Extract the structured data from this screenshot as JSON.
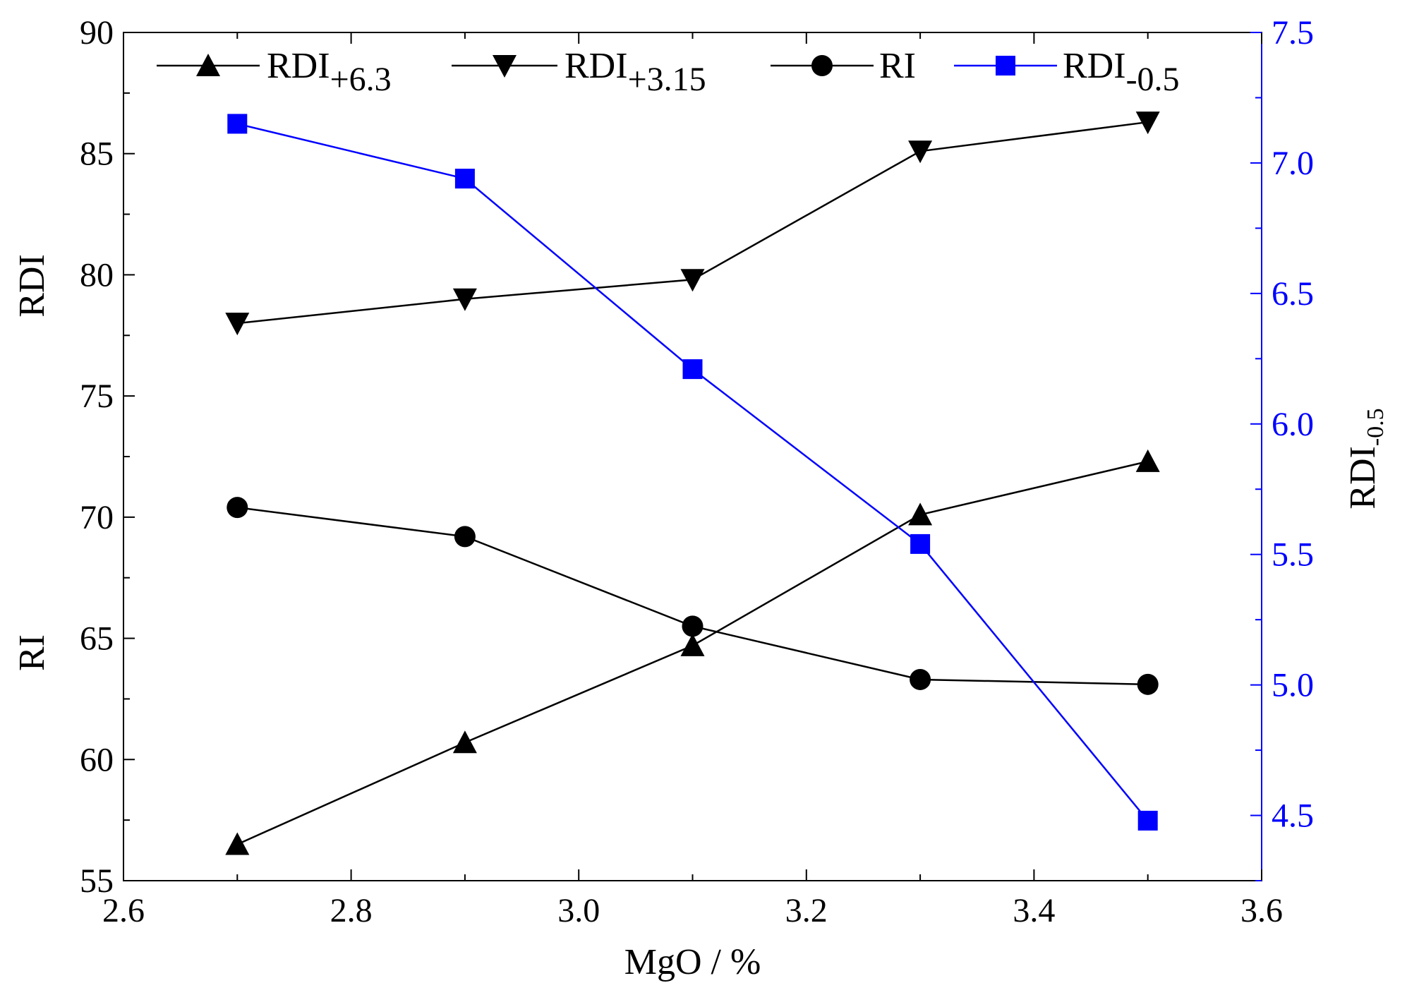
{
  "chart_data": {
    "type": "line",
    "xlabel": "MgO / %",
    "ylabel_left_top": "RDI",
    "ylabel_left_bottom": "RI",
    "ylabel_right": {
      "base": "RDI",
      "sub": "-0.5"
    },
    "xlim": [
      2.6,
      3.6
    ],
    "ylim_left": [
      55,
      90
    ],
    "ylim_right": [
      4.25,
      7.5
    ],
    "x_ticks": [
      "2.6",
      "2.8",
      "3.0",
      "3.2",
      "3.4",
      "3.6"
    ],
    "y_left_ticks": [
      "55",
      "60",
      "65",
      "70",
      "75",
      "80",
      "85",
      "90"
    ],
    "y_right_ticks": [
      "4.5",
      "5.0",
      "5.5",
      "6.0",
      "6.5",
      "7.0",
      "7.5"
    ],
    "x": [
      2.7,
      2.9,
      3.1,
      3.3,
      3.5
    ],
    "series": [
      {
        "name": "RDI+6.3",
        "label_base": "RDI",
        "label_sub": "+6.3",
        "axis": "left",
        "marker": "triangle-up",
        "color": "#000000",
        "values": [
          56.5,
          60.7,
          64.7,
          70.1,
          72.3
        ]
      },
      {
        "name": "RDI+3.15",
        "label_base": "RDI",
        "label_sub": "+3.15",
        "axis": "left",
        "marker": "triangle-down",
        "color": "#000000",
        "values": [
          78.0,
          79.0,
          79.8,
          85.1,
          86.3
        ]
      },
      {
        "name": "RI",
        "label_base": "RI",
        "label_sub": "",
        "axis": "left",
        "marker": "circle",
        "color": "#000000",
        "values": [
          70.4,
          69.2,
          65.5,
          63.3,
          63.1
        ]
      },
      {
        "name": "RDI-0.5",
        "label_base": "RDI",
        "label_sub": "-0.5",
        "axis": "right",
        "marker": "square",
        "color": "#0000ff",
        "values": [
          7.15,
          6.94,
          6.21,
          5.54,
          4.48
        ]
      }
    ],
    "colors": {
      "axis": "#000000",
      "right_axis": "#0000ff"
    }
  }
}
